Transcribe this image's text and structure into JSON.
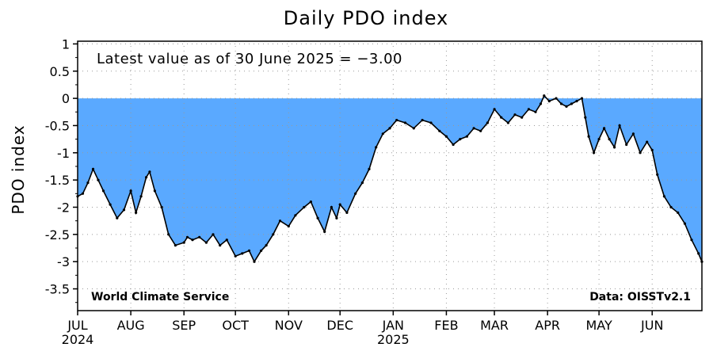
{
  "chart_data": {
    "type": "area",
    "title": "Daily PDO index",
    "ylabel": "PDO index",
    "xlabel": "",
    "ylim": [
      -3.9,
      1.05
    ],
    "xlim": [
      "2024-07-01",
      "2025-06-30"
    ],
    "yticks": [
      "1",
      "0.5",
      "0",
      "-0.5",
      "-1",
      "-1.5",
      "-2",
      "-2.5",
      "-3",
      "-3.5"
    ],
    "xticks": [
      {
        "label": "JUL",
        "date": "2024-07-01"
      },
      {
        "label": "AUG",
        "date": "2024-08-01"
      },
      {
        "label": "SEP",
        "date": "2024-09-01"
      },
      {
        "label": "OCT",
        "date": "2024-10-01"
      },
      {
        "label": "NOV",
        "date": "2024-11-01"
      },
      {
        "label": "DEC",
        "date": "2024-12-01"
      },
      {
        "label": "JAN",
        "date": "2025-01-01"
      },
      {
        "label": "FEB",
        "date": "2025-02-01"
      },
      {
        "label": "MAR",
        "date": "2025-03-01"
      },
      {
        "label": "APR",
        "date": "2025-04-01"
      },
      {
        "label": "MAY",
        "date": "2025-05-01"
      },
      {
        "label": "JUN",
        "date": "2025-06-01"
      }
    ],
    "year_labels": [
      {
        "label": "2024",
        "date": "2024-07-01"
      },
      {
        "label": "2025",
        "date": "2025-01-01"
      }
    ],
    "grid": true,
    "fill_color": "#5aa9ff",
    "line_color": "#000000",
    "annotation": "Latest value as of 30 June 2025 = −3.00",
    "credit_left": "World Climate Service",
    "credit_right": "Data: OISSTv2.1",
    "series": [
      {
        "x": [
          "2024-07-01",
          "2024-07-04",
          "2024-07-07",
          "2024-07-10",
          "2024-07-13",
          "2024-07-16",
          "2024-07-20",
          "2024-07-24",
          "2024-07-28",
          "2024-08-01",
          "2024-08-04",
          "2024-08-07",
          "2024-08-10",
          "2024-08-12",
          "2024-08-15",
          "2024-08-19",
          "2024-08-23",
          "2024-08-27",
          "2024-09-01",
          "2024-09-03",
          "2024-09-06",
          "2024-09-10",
          "2024-09-14",
          "2024-09-18",
          "2024-09-22",
          "2024-09-26",
          "2024-10-01",
          "2024-10-05",
          "2024-10-09",
          "2024-10-12",
          "2024-10-16",
          "2024-10-19",
          "2024-10-23",
          "2024-10-27",
          "2024-11-01",
          "2024-11-05",
          "2024-11-10",
          "2024-11-14",
          "2024-11-18",
          "2024-11-22",
          "2024-11-26",
          "2024-11-29",
          "2024-12-01",
          "2024-12-05",
          "2024-12-10",
          "2024-12-14",
          "2024-12-18",
          "2024-12-22",
          "2024-12-26",
          "2024-12-30",
          "2025-01-03",
          "2025-01-08",
          "2025-01-13",
          "2025-01-18",
          "2025-01-23",
          "2025-01-28",
          "2025-02-01",
          "2025-02-05",
          "2025-02-09",
          "2025-02-13",
          "2025-02-17",
          "2025-02-21",
          "2025-02-25",
          "2025-03-01",
          "2025-03-05",
          "2025-03-09",
          "2025-03-13",
          "2025-03-17",
          "2025-03-21",
          "2025-03-25",
          "2025-03-28",
          "2025-03-30",
          "2025-04-02",
          "2025-04-06",
          "2025-04-09",
          "2025-04-12",
          "2025-04-15",
          "2025-04-18",
          "2025-04-21",
          "2025-04-23",
          "2025-04-25",
          "2025-04-28",
          "2025-05-01",
          "2025-05-04",
          "2025-05-07",
          "2025-05-10",
          "2025-05-13",
          "2025-05-17",
          "2025-05-21",
          "2025-05-25",
          "2025-05-29",
          "2025-06-01",
          "2025-06-04",
          "2025-06-08",
          "2025-06-12",
          "2025-06-16",
          "2025-06-20",
          "2025-06-24",
          "2025-06-28",
          "2025-06-30"
        ],
        "y": [
          -1.8,
          -1.75,
          -1.55,
          -1.3,
          -1.5,
          -1.7,
          -1.95,
          -2.2,
          -2.05,
          -1.7,
          -2.1,
          -1.8,
          -1.45,
          -1.35,
          -1.7,
          -2.0,
          -2.5,
          -2.7,
          -2.65,
          -2.55,
          -2.6,
          -2.55,
          -2.65,
          -2.5,
          -2.7,
          -2.6,
          -2.9,
          -2.85,
          -2.8,
          -3.0,
          -2.8,
          -2.7,
          -2.5,
          -2.25,
          -2.35,
          -2.15,
          -2.0,
          -1.9,
          -2.2,
          -2.45,
          -2.0,
          -2.2,
          -1.95,
          -2.1,
          -1.75,
          -1.55,
          -1.3,
          -0.9,
          -0.65,
          -0.55,
          -0.4,
          -0.45,
          -0.55,
          -0.4,
          -0.45,
          -0.6,
          -0.7,
          -0.85,
          -0.75,
          -0.7,
          -0.55,
          -0.6,
          -0.45,
          -0.2,
          -0.35,
          -0.45,
          -0.3,
          -0.35,
          -0.2,
          -0.25,
          -0.1,
          0.05,
          -0.05,
          0.0,
          -0.1,
          -0.15,
          -0.1,
          -0.05,
          0.0,
          -0.35,
          -0.7,
          -1.0,
          -0.75,
          -0.55,
          -0.75,
          -0.9,
          -0.5,
          -0.85,
          -0.65,
          -1.0,
          -0.8,
          -0.95,
          -1.4,
          -1.8,
          -2.0,
          -2.1,
          -2.3,
          -2.6,
          -2.85,
          -3.0
        ]
      }
    ]
  }
}
